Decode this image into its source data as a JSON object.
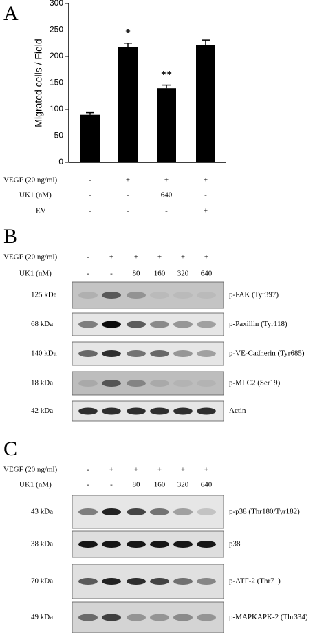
{
  "chart_data": {
    "type": "bar",
    "panel_label": "A",
    "ylabel": "Migrated cells / Field",
    "categories": [
      null,
      null,
      null,
      null
    ],
    "values": [
      90,
      218,
      140,
      222
    ],
    "errors": [
      4,
      7,
      6,
      9
    ],
    "annotations": [
      null,
      "*",
      "**",
      null
    ],
    "color": "#000000",
    "ylim": [
      0,
      300
    ],
    "yticks": [
      0,
      50,
      100,
      150,
      200,
      250,
      300
    ],
    "grid": false
  },
  "treatments": [
    {
      "label": "VEGF (20 ng/ml)",
      "cells": [
        "-",
        "+",
        "+",
        "+"
      ]
    },
    {
      "label": "UK1 (nM)",
      "cells": [
        "-",
        "-",
        "640",
        "-"
      ]
    },
    {
      "label": "EV",
      "cells": [
        "-",
        "-",
        "-",
        "+"
      ]
    }
  ],
  "panel_b": {
    "label": "B",
    "treatments": [
      {
        "label": "VEGF (20 ng/ml)",
        "cells": [
          "-",
          "+",
          "+",
          "+",
          "+",
          "+"
        ]
      },
      {
        "label": "UK1 (nM)",
        "cells": [
          "-",
          "-",
          "80",
          "160",
          "320",
          "640"
        ]
      }
    ],
    "blots": [
      {
        "size": "125 kDa",
        "target": "p-FAK (Tyr397)"
      },
      {
        "size": "68 kDa",
        "target": "p-Paxillin (Tyr118)"
      },
      {
        "size": "140 kDa",
        "target": "p-VE-Cadherin (Tyr685)"
      },
      {
        "size": "18 kDa",
        "target": "p-MLC2 (Ser19)"
      },
      {
        "size": "42 kDa",
        "target": "Actin"
      }
    ]
  },
  "panel_c": {
    "label": "C",
    "treatments": [
      {
        "label": "VEGF (20 ng/ml)",
        "cells": [
          "-",
          "+",
          "+",
          "+",
          "+",
          "+"
        ]
      },
      {
        "label": "UK1 (nM)",
        "cells": [
          "-",
          "-",
          "80",
          "160",
          "320",
          "640"
        ]
      }
    ],
    "blots": [
      {
        "size": "43 kDa",
        "target": "p-p38 (Thr180/Tyr182)"
      },
      {
        "size": "38 kDa",
        "target": "p38"
      },
      {
        "size": "70 kDa",
        "target": "p-ATF-2 (Thr71)"
      },
      {
        "size": "49 kDa",
        "target": "p-MAPKAPK-2 (Thr334)"
      }
    ]
  }
}
